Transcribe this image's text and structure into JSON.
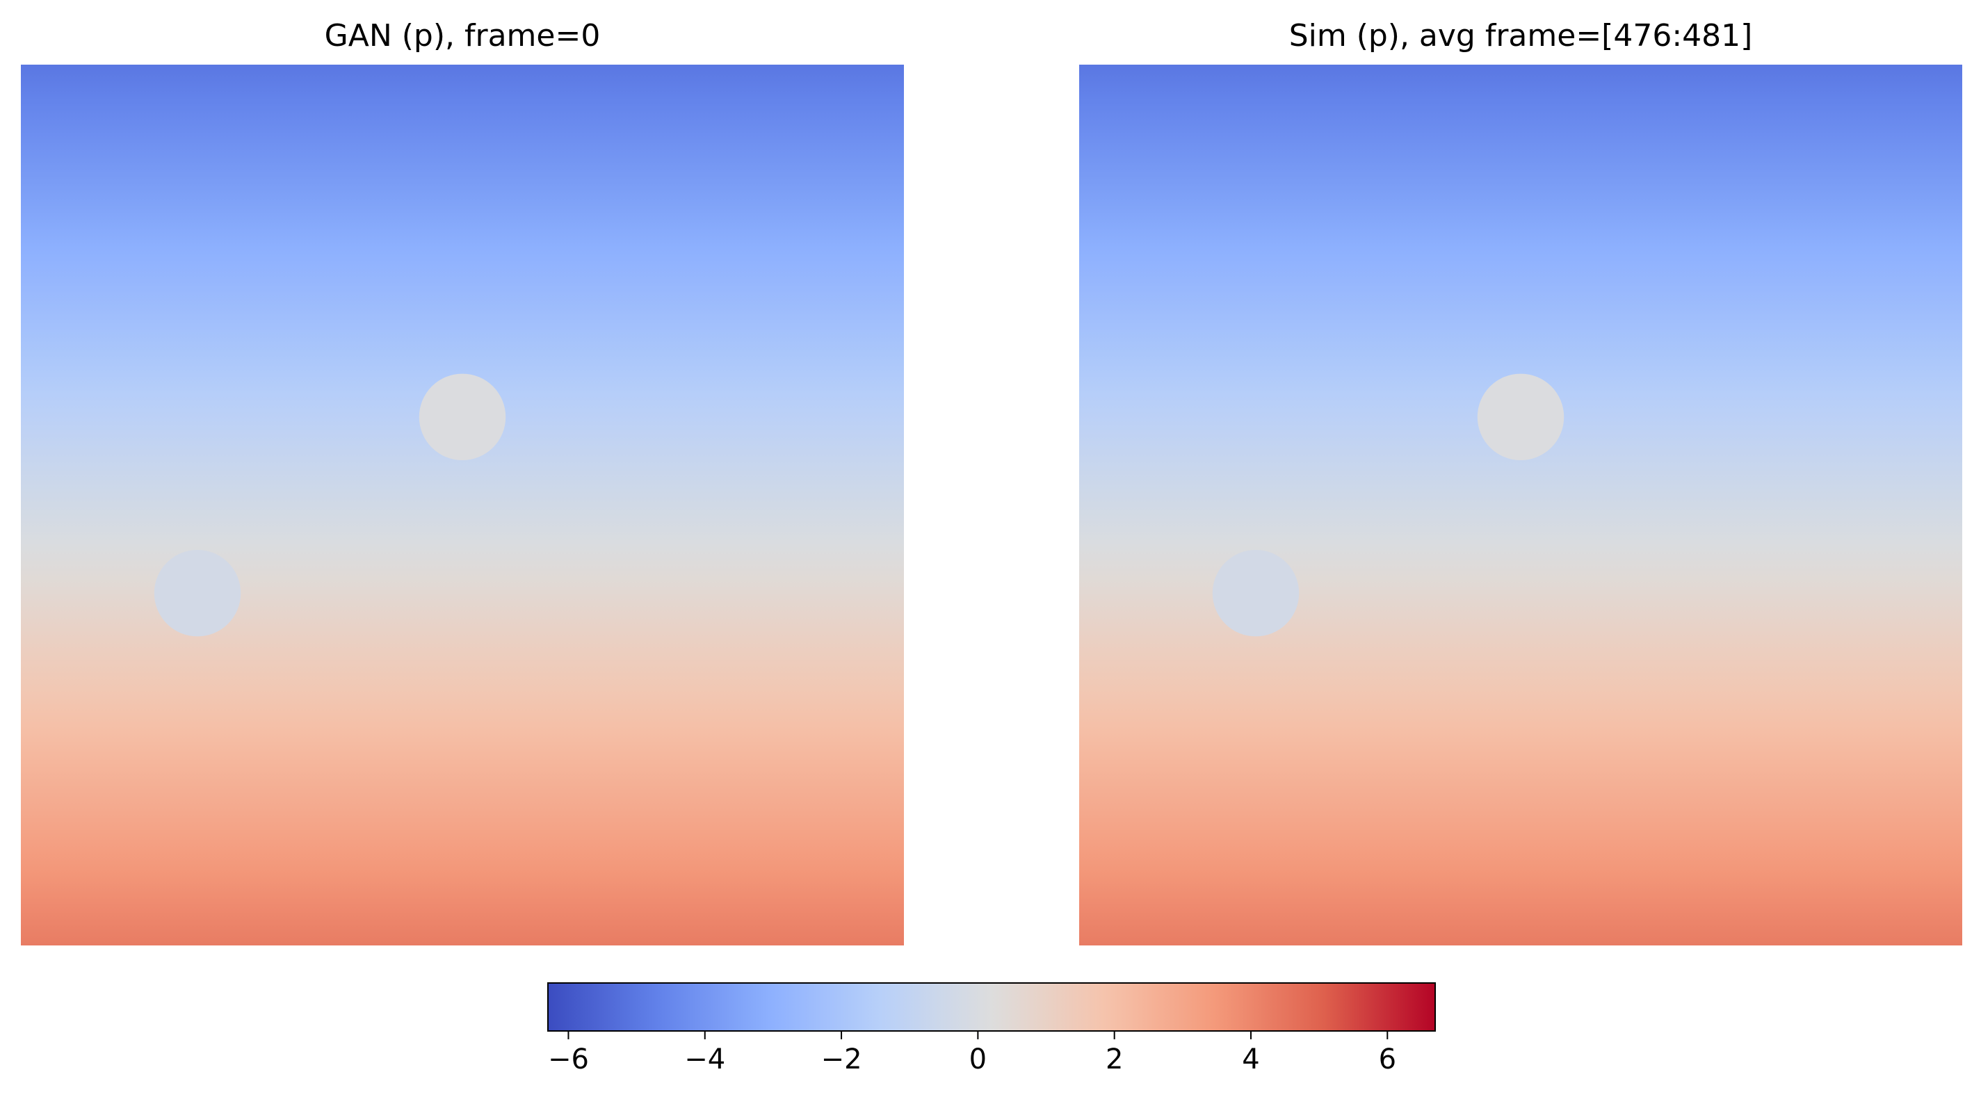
{
  "chart_data": [
    {
      "type": "heatmap",
      "title": "GAN (p), frame=0",
      "value_range": [
        -6.3,
        6.7
      ],
      "field_top_value": -5.0,
      "field_bottom_value": 4.3,
      "obstacles": [
        {
          "cx": 0.5,
          "cy": 0.4,
          "r": 0.049,
          "value": 0.1
        },
        {
          "cx": 0.2,
          "cy": 0.6,
          "r": 0.049,
          "value": -0.3
        }
      ],
      "grid": false,
      "axes_visible": false
    },
    {
      "type": "heatmap",
      "title": "Sim (p), avg frame=[476:481]",
      "value_range": [
        -6.3,
        6.7
      ],
      "field_top_value": -5.0,
      "field_bottom_value": 4.3,
      "obstacles": [
        {
          "cx": 0.5,
          "cy": 0.4,
          "r": 0.049,
          "value": 0.1
        },
        {
          "cx": 0.2,
          "cy": 0.6,
          "r": 0.049,
          "value": -0.3
        }
      ],
      "grid": false,
      "axes_visible": false
    }
  ],
  "colorbar": {
    "colormap": "coolwarm",
    "min": -6.3,
    "max": 6.7,
    "orientation": "horizontal",
    "ticks": [
      {
        "value": -6,
        "label": "−6"
      },
      {
        "value": -4,
        "label": "−4"
      },
      {
        "value": -2,
        "label": "−2"
      },
      {
        "value": 0,
        "label": "0"
      },
      {
        "value": 2,
        "label": "2"
      },
      {
        "value": 4,
        "label": "4"
      },
      {
        "value": 6,
        "label": "6"
      }
    ]
  }
}
